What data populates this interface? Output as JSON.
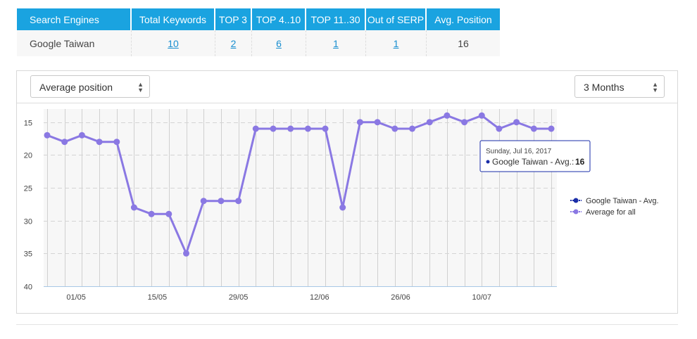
{
  "summary_table": {
    "headers": [
      "Search Engines",
      "Total Keywords",
      "TOP 3",
      "TOP 4..10",
      "TOP 11..30",
      "Out of SERP",
      "Avg. Position"
    ],
    "row": {
      "engine": "Google Taiwan",
      "total_keywords": "10",
      "top3": "2",
      "top4_10": "6",
      "top11_30": "1",
      "out_of_serp": "1",
      "avg_position": "16"
    }
  },
  "toolbar": {
    "metric_select": "Average position",
    "range_select": "3 Months"
  },
  "colors": {
    "header_bg": "#1aa3e0",
    "series_line": "#8a78e3",
    "tooltip_border": "#1a2da8",
    "google_series": "#1a2da8"
  },
  "chart_data": {
    "type": "line",
    "xlabel": "",
    "ylabel": "",
    "ylim": [
      40,
      13
    ],
    "y_reversed": true,
    "y_ticks": [
      15,
      20,
      25,
      30,
      35,
      40
    ],
    "x_tick_labels": [
      "01/05",
      "15/05",
      "29/05",
      "12/06",
      "26/06",
      "10/07"
    ],
    "x_tick_day_index": [
      5,
      19,
      33,
      47,
      61,
      75
    ],
    "x_point_day_index": [
      0,
      3,
      6,
      9,
      12,
      15,
      18,
      21,
      24,
      27,
      30,
      33,
      36,
      39,
      42,
      45,
      48,
      51,
      54,
      57,
      60,
      63,
      66,
      69,
      72,
      75,
      78,
      81,
      84,
      87
    ],
    "series": [
      {
        "name": "Average for all",
        "values": [
          17,
          18,
          17,
          18,
          18,
          28,
          29,
          29,
          35,
          27,
          27,
          27,
          16,
          16,
          16,
          16,
          16,
          28,
          15,
          15,
          16,
          16,
          15,
          14,
          15,
          14,
          16,
          15,
          16,
          16
        ]
      }
    ],
    "legend": {
      "position": "right",
      "entries": [
        "Google Taiwan - Avg.",
        "Average for all"
      ]
    },
    "tooltip": {
      "date": "Sunday, Jul 16, 2017",
      "series": "Google Taiwan - Avg.:",
      "value": "16"
    },
    "grid": true
  }
}
